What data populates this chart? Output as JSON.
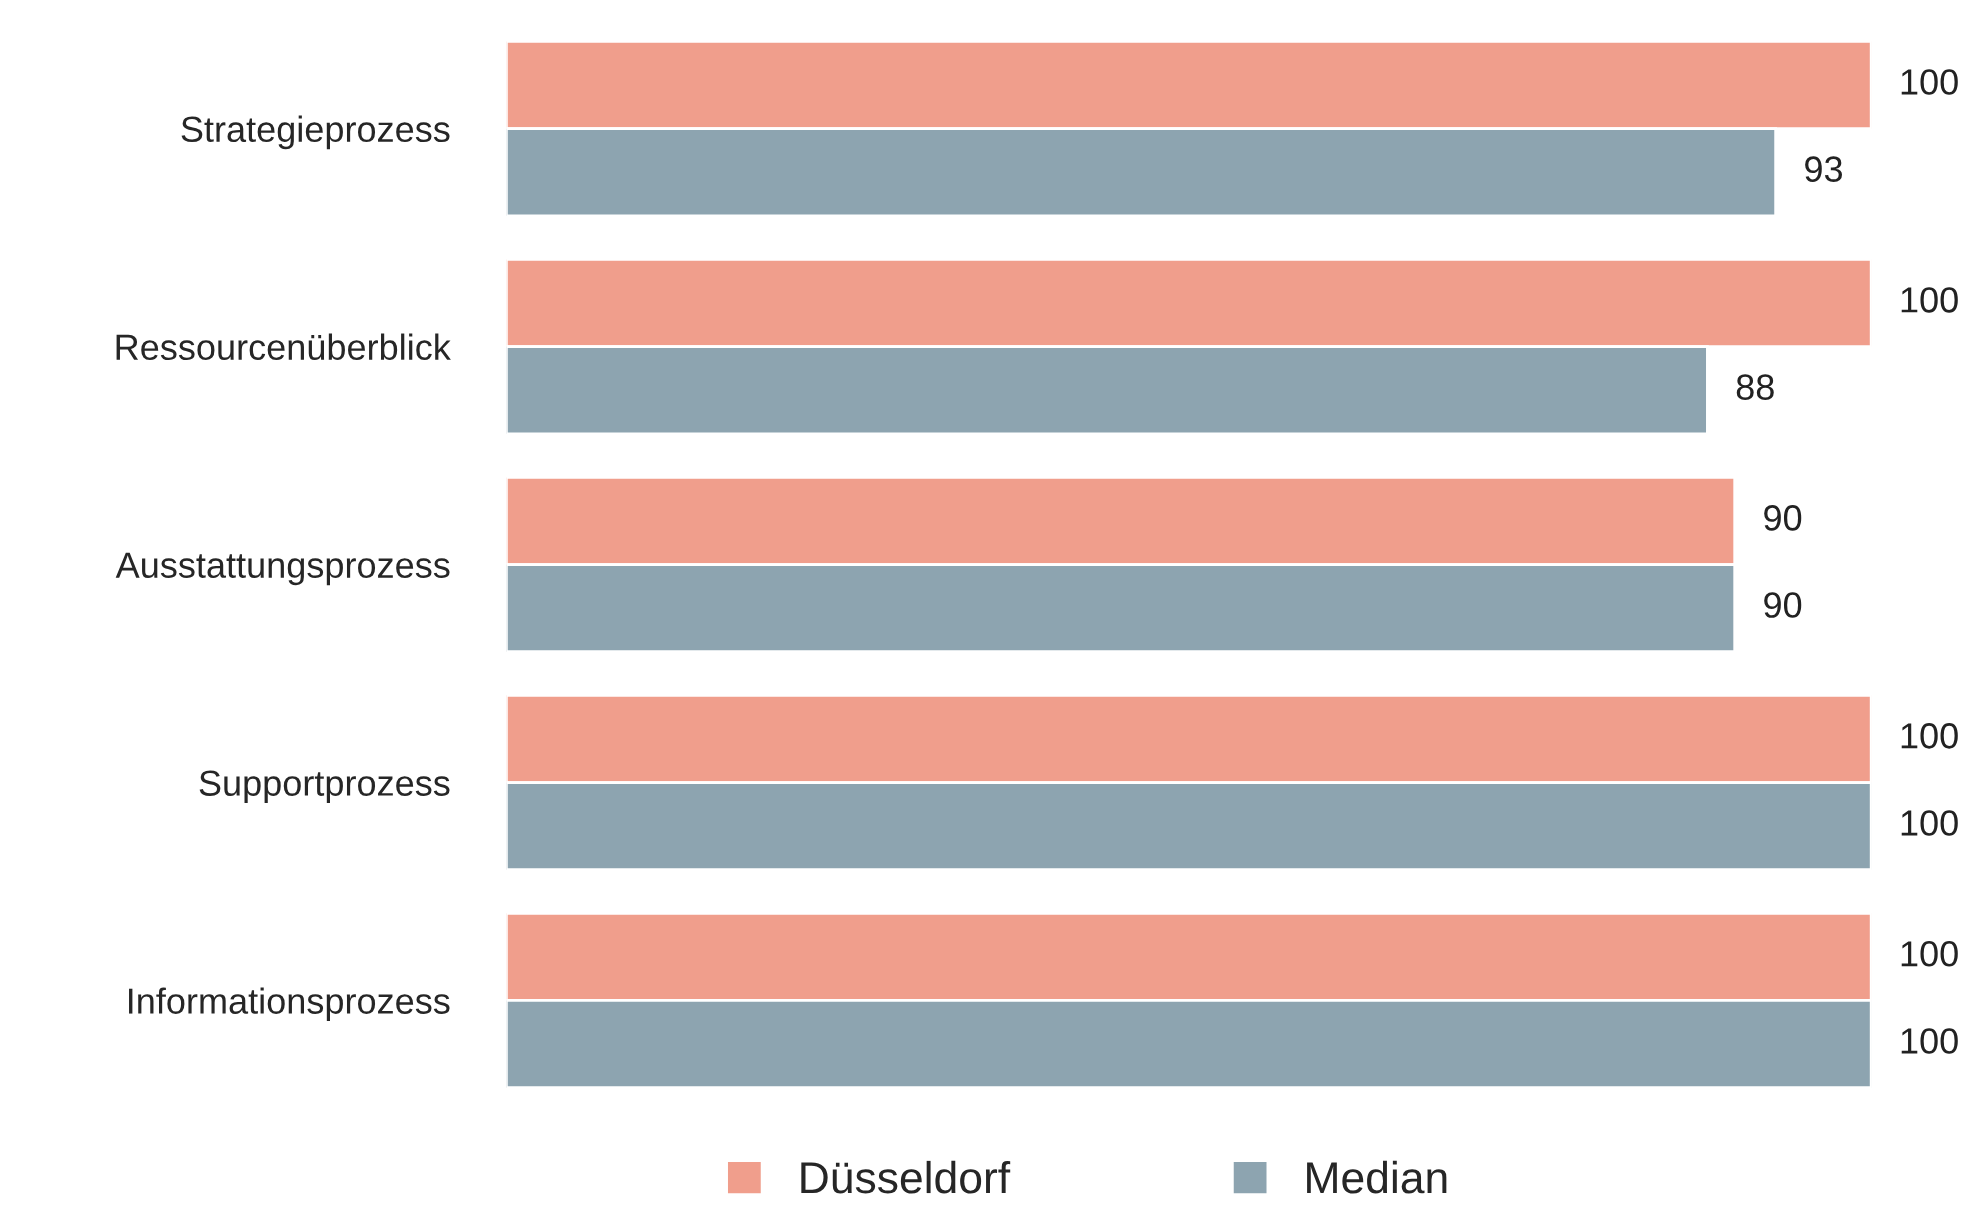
{
  "chart_data": {
    "type": "bar",
    "orientation": "horizontal",
    "categories": [
      "Strategieprozess",
      "Ressourcenüberblick",
      "Ausstattungsprozess",
      "Supportprozess",
      "Informationsprozess"
    ],
    "series": [
      {
        "name": "Düsseldorf",
        "color": "#f09e8c",
        "values": [
          100,
          100,
          90,
          100,
          100
        ]
      },
      {
        "name": "Median",
        "color": "#8da4b0",
        "values": [
          93,
          88,
          90,
          100,
          100
        ]
      }
    ],
    "data_labels": true,
    "legend": "bottom",
    "grid": false,
    "tick_labels": "y"
  }
}
